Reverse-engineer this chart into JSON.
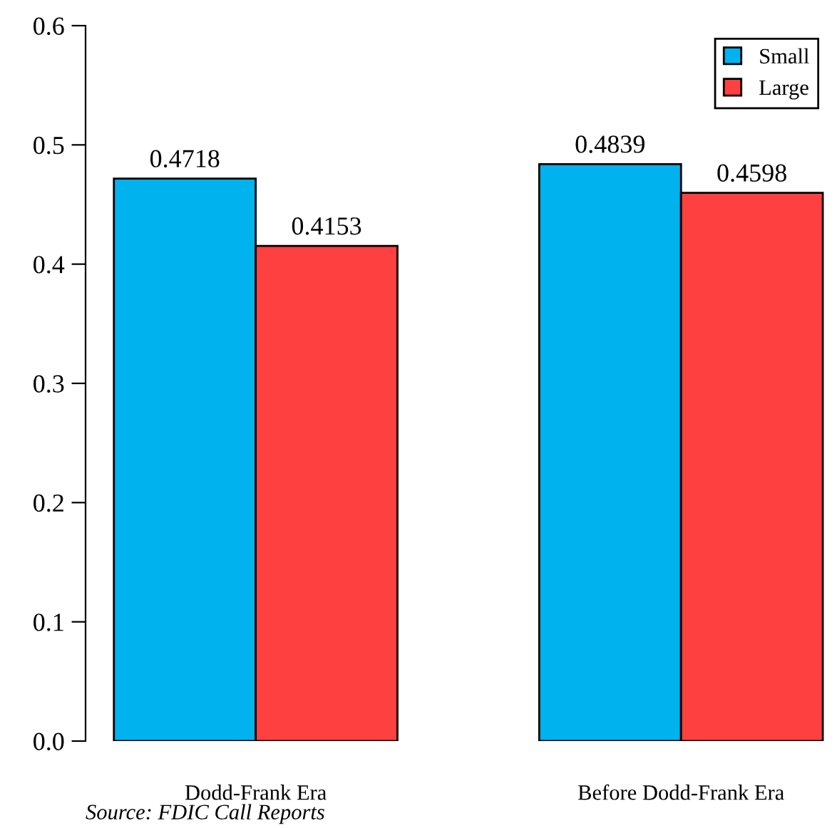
{
  "chart_data": {
    "type": "bar",
    "categories": [
      "Dodd-Frank Era",
      "Before Dodd-Frank Era"
    ],
    "series": [
      {
        "name": "Small",
        "color": "#00b2ee",
        "values": [
          0.4718,
          0.4839
        ]
      },
      {
        "name": "Large",
        "color": "#ff4040",
        "values": [
          0.4153,
          0.4598
        ]
      }
    ],
    "ylim": [
      0,
      0.6
    ],
    "yticks": [
      "0.0",
      0.1,
      0.2,
      0.3,
      0.4,
      0.5,
      0.6
    ],
    "data_labels": true,
    "legend": "top right",
    "grid": false,
    "annotations": [
      "Source: FDIC Call Reports"
    ]
  }
}
